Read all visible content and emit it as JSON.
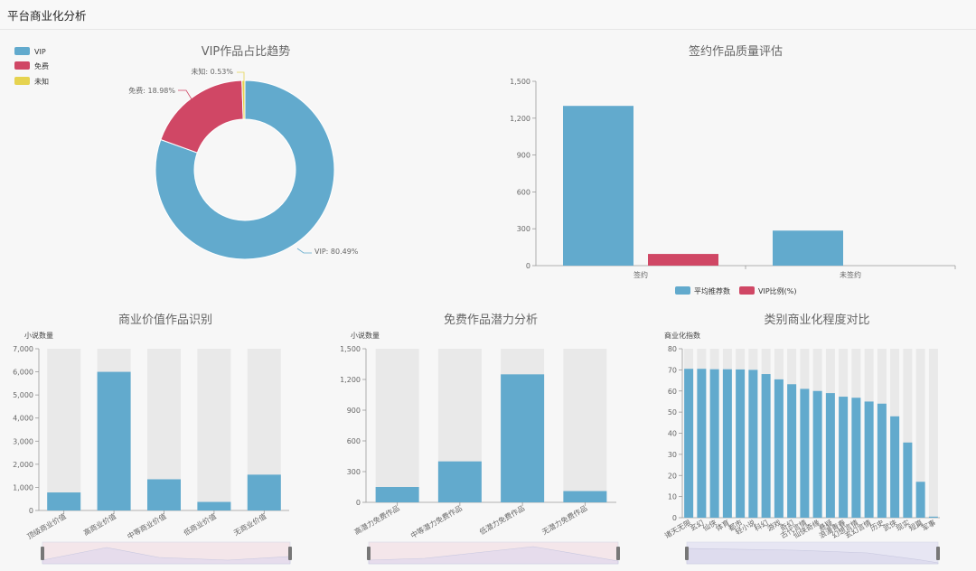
{
  "page": {
    "title": "平台商业化分析"
  },
  "colors": {
    "blue": "#62aacd",
    "red": "#d04765",
    "yellow": "#e6d350",
    "gray": "#e9e9e9",
    "axis": "#999999"
  },
  "chart_data": [
    {
      "type": "pie",
      "title": "VIP作品占比趋势",
      "legend": [
        "VIP",
        "免费",
        "未知"
      ],
      "slices": [
        {
          "name": "VIP",
          "value": 80.49,
          "label": "VIP: 80.49%"
        },
        {
          "name": "免费",
          "value": 18.98,
          "label": "免费: 18.98%"
        },
        {
          "name": "未知",
          "value": 0.53,
          "label": "未知: 0.53%"
        }
      ]
    },
    {
      "type": "bar",
      "title": "签约作品质量评估",
      "categories": [
        "签约",
        "未签约"
      ],
      "series": [
        {
          "name": "平均推荐数",
          "values": [
            1300,
            285
          ]
        },
        {
          "name": "VIP比例(%)",
          "values": [
            95,
            0
          ]
        }
      ],
      "ylim": [
        0,
        1500
      ],
      "yticks": [
        "0",
        "300",
        "600",
        "900",
        "1,200",
        "1,500"
      ],
      "legend_position": "bottom"
    },
    {
      "type": "bar",
      "title": "商业价值作品识别",
      "ylabel": "小说数量",
      "categories": [
        "顶级商业价值",
        "高商业价值",
        "中等商业价值",
        "低商业价值",
        "无商业价值"
      ],
      "values": [
        780,
        6000,
        1350,
        370,
        1550
      ],
      "ylim": [
        0,
        7000
      ],
      "yticks": [
        "0",
        "1,000",
        "2,000",
        "3,000",
        "4,000",
        "5,000",
        "6,000",
        "7,000"
      ],
      "background_bars": true,
      "data_zoom": true
    },
    {
      "type": "bar",
      "title": "免费作品潜力分析",
      "ylabel": "小说数量",
      "categories": [
        "高潜力免费作品",
        "中等潜力免费作品",
        "低潜力免费作品",
        "无潜力免费作品"
      ],
      "values": [
        150,
        400,
        1250,
        110
      ],
      "ylim": [
        0,
        1500
      ],
      "yticks": [
        "0",
        "300",
        "600",
        "900",
        "1,200",
        "1,500"
      ],
      "background_bars": true,
      "data_zoom": true
    },
    {
      "type": "bar",
      "title": "类别商业化程度对比",
      "ylabel": "商业化指数",
      "categories": [
        "诸天无限",
        "玄幻",
        "仙侠",
        "体育",
        "都市",
        "轻小说",
        "科幻",
        "游戏",
        "奇幻",
        "古代言情",
        "仙侠奇缘",
        "悬疑",
        "浪漫青春",
        "幻想言情",
        "玄幻言情",
        "历史",
        "武侠",
        "现实",
        "短篇",
        "军事"
      ],
      "visible_tick_labels": [
        "诸天无限",
        "玄幻",
        "仙侠",
        "体育",
        "都市",
        "轻小说",
        "科幻",
        "游戏",
        "奇幻",
        "古代言情",
        "仙侠奇缘",
        "悬疑",
        "浪漫青春",
        "幻想言情",
        "玄幻言情",
        "历史",
        "武侠",
        "现实",
        "短篇",
        "军事"
      ],
      "values": [
        70.5,
        70.5,
        70.3,
        70.3,
        70.2,
        70,
        68,
        65.5,
        63.2,
        61,
        60,
        59,
        57.3,
        56.8,
        55,
        54,
        48,
        35.6,
        17,
        0.5
      ],
      "ylim": [
        0,
        80
      ],
      "yticks": [
        "0",
        "10",
        "20",
        "30",
        "40",
        "50",
        "60",
        "70",
        "80"
      ],
      "background_bars": true,
      "data_zoom": true
    }
  ]
}
